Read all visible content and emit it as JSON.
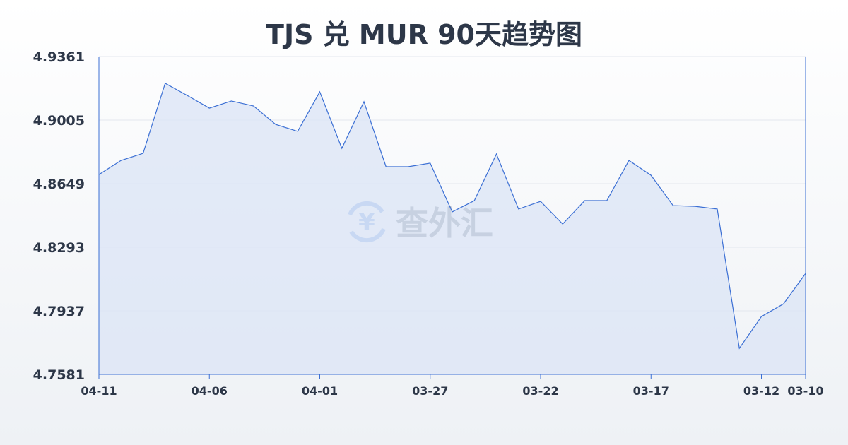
{
  "chart_data": {
    "type": "area",
    "title": "TJS 兑 MUR 90天趋势图",
    "xlabel": "",
    "ylabel": "",
    "ylim": [
      4.7581,
      4.9361
    ],
    "yticks": [
      "4.9361",
      "4.9005",
      "4.8649",
      "4.8293",
      "4.7937",
      "4.7581"
    ],
    "grid": true,
    "line_color": "#3b6fd4",
    "fill_color": "#dbe4f6",
    "x": [
      "04-11",
      "04-10",
      "04-09",
      "04-08",
      "04-07",
      "04-06",
      "04-05",
      "04-04",
      "04-03",
      "04-02",
      "04-01",
      "03-31",
      "03-30",
      "03-29",
      "03-28",
      "03-27",
      "03-26",
      "03-25",
      "03-24",
      "03-23",
      "03-22",
      "03-21",
      "03-20",
      "03-19",
      "03-18",
      "03-17",
      "03-16",
      "03-15",
      "03-14",
      "03-13",
      "03-12",
      "03-11",
      "03-10"
    ],
    "xtick_labels": [
      "04-11",
      "04-06",
      "04-01",
      "03-27",
      "03-22",
      "03-17",
      "03-12",
      "03-10"
    ],
    "values": [
      4.87,
      4.8779,
      4.8819,
      4.9211,
      4.9143,
      4.9072,
      4.9112,
      4.9084,
      4.8981,
      4.8942,
      4.9163,
      4.8847,
      4.9108,
      4.8744,
      4.8744,
      4.8764,
      4.8491,
      4.8554,
      4.8815,
      4.8507,
      4.855,
      4.8423,
      4.8554,
      4.8554,
      4.8779,
      4.8696,
      4.8526,
      4.8522,
      4.8507,
      4.7727,
      4.7905,
      4.7976,
      4.8146
    ]
  },
  "watermark": {
    "text": "查外汇",
    "icon": "yen-exchange-icon"
  }
}
